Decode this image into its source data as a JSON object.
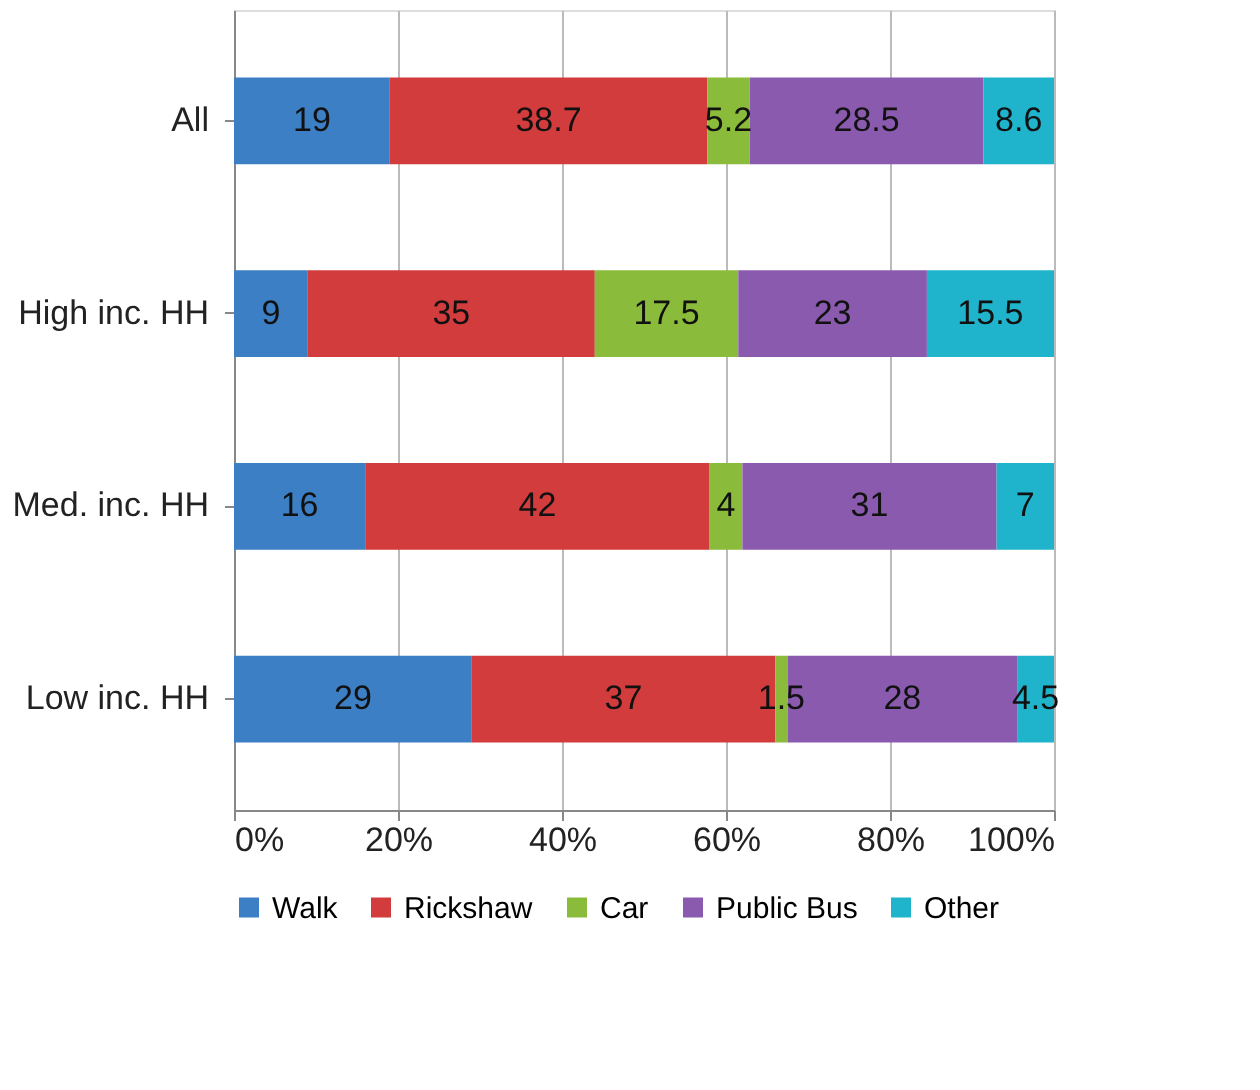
{
  "chart_data": {
    "type": "bar",
    "orientation": "horizontal",
    "stacked": true,
    "categories": [
      "All",
      "High inc. HH",
      "Med. inc. HH",
      "Low inc. HH"
    ],
    "series": [
      {
        "name": "Walk",
        "color": "#3c7fc4",
        "values": [
          19,
          9,
          16,
          29
        ]
      },
      {
        "name": "Rickshaw",
        "color": "#d23c3c",
        "values": [
          38.7,
          35,
          42,
          37
        ]
      },
      {
        "name": "Car",
        "color": "#8bbb3a",
        "values": [
          5.2,
          17.5,
          4,
          1.5
        ]
      },
      {
        "name": "Public Bus",
        "color": "#8a5aae",
        "values": [
          28.5,
          23,
          31,
          28
        ]
      },
      {
        "name": "Other",
        "color": "#1fb4cc",
        "values": [
          8.6,
          15.5,
          7,
          4.5
        ]
      }
    ],
    "xlim": [
      0,
      100
    ],
    "xticks": [
      {
        "value": 0,
        "label": "0%"
      },
      {
        "value": 20,
        "label": "20%"
      },
      {
        "value": 40,
        "label": "40%"
      },
      {
        "value": 60,
        "label": "60%"
      },
      {
        "value": 80,
        "label": "80%"
      },
      {
        "value": 100,
        "label": "100%"
      }
    ],
    "grid": "x",
    "legend": "bottom",
    "data_labels": true
  }
}
